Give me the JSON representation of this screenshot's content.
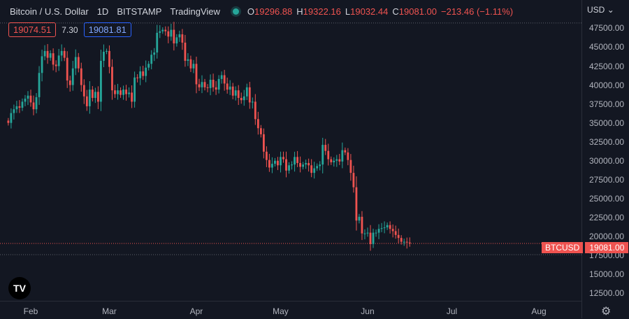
{
  "legend": {
    "symbol": "Bitcoin / U.S. Dollar",
    "interval": "1D",
    "exchange": "BITSTAMP",
    "source": "TradingView",
    "o_label": "O",
    "o_value": "19296.88",
    "h_label": "H",
    "h_value": "19322.16",
    "l_label": "L",
    "l_value": "19032.44",
    "c_label": "C",
    "c_value": "19081.00",
    "change": "−213.46 (−1.11%)"
  },
  "indicators": {
    "bid": "19074.51",
    "spread": "7.30",
    "ask": "19081.81"
  },
  "currency": "USD",
  "price_tag": {
    "name": "BTCUSD",
    "price": "19081.00"
  },
  "logo": "TV",
  "colors": {
    "up": "#26a69a",
    "down": "#ef5350",
    "background": "#131722"
  },
  "chart_data": {
    "type": "candlestick",
    "y_ticks": [
      "47500.00",
      "45000.00",
      "42500.00",
      "40000.00",
      "37500.00",
      "35000.00",
      "32500.00",
      "30000.00",
      "27500.00",
      "25000.00",
      "22500.00",
      "20000.00",
      "17500.00",
      "15000.00",
      "12500.00"
    ],
    "x_ticks": [
      "Feb",
      "Mar",
      "Apr",
      "May",
      "Jun",
      "Jul",
      "Aug"
    ],
    "ylim": [
      11500,
      49200
    ],
    "current_price": 19081.0,
    "high_marker": 48200,
    "low_marker": 17600,
    "start_date": "2022-01-24",
    "closes": [
      35000,
      36300,
      36800,
      37200,
      37000,
      37800,
      38200,
      38600,
      37700,
      36800,
      38400,
      41600,
      43800,
      44500,
      43600,
      44200,
      42700,
      42500,
      43900,
      44500,
      43600,
      40600,
      40000,
      42200,
      43700,
      42200,
      40000,
      38500,
      37200,
      39400,
      38300,
      39100,
      37800,
      43200,
      44400,
      44500,
      42400,
      39300,
      38800,
      39300,
      38700,
      39400,
      38800,
      39000,
      37800,
      41000,
      40900,
      41800,
      41200,
      42300,
      42800,
      44000,
      44300,
      46900,
      47100,
      47300,
      47100,
      46400,
      47300,
      45500,
      46300,
      46700,
      45600,
      43200,
      43400,
      42200,
      42800,
      40100,
      39700,
      40400,
      39700,
      39600,
      40700,
      39700,
      39400,
      40800,
      41300,
      40200,
      39400,
      39800,
      38600,
      39300,
      38300,
      38000,
      38500,
      39700,
      37700,
      37800,
      35500,
      34300,
      33500,
      31200,
      30100,
      29100,
      29600,
      30000,
      29400,
      30500,
      30200,
      28700,
      29400,
      29500,
      30500,
      29700,
      29200,
      29500,
      29700,
      29400,
      28400,
      29000,
      29300,
      29500,
      32100,
      31300,
      30200,
      29800,
      30000,
      30200,
      29900,
      31400,
      31100,
      30100,
      28400,
      26500,
      22100,
      22600,
      20400,
      20400,
      20500,
      19000,
      20500,
      20500,
      21000,
      21100,
      21200,
      21500,
      21000,
      20700,
      20200,
      19800,
      19300,
      19300,
      19200,
      19081
    ]
  }
}
